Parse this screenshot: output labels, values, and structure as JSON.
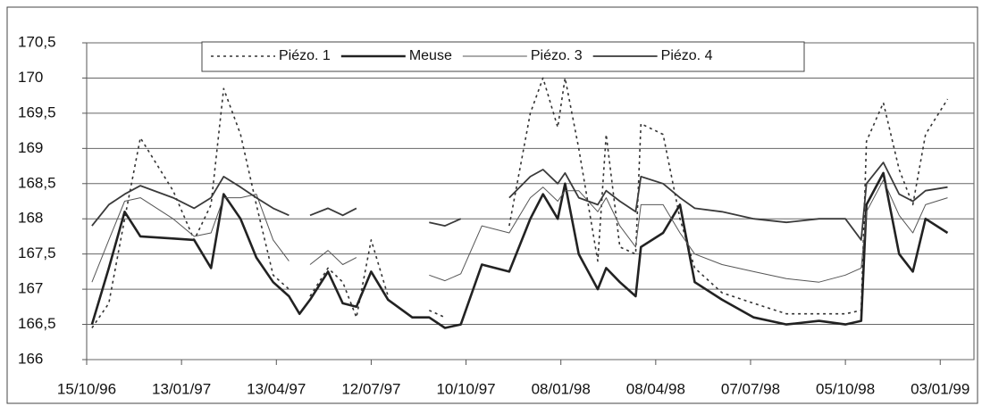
{
  "chart_data": {
    "type": "line",
    "x": [
      "1996-10-20",
      "1996-11-05",
      "1996-11-20",
      "1996-12-05",
      "1997-01-05",
      "1997-01-25",
      "1997-02-10",
      "1997-02-22",
      "1997-03-10",
      "1997-03-25",
      "1997-04-10",
      "1997-04-25",
      "1997-05-05",
      "1997-05-15",
      "1997-06-01",
      "1997-06-15",
      "1997-06-28",
      "1997-07-12",
      "1997-07-28",
      "1997-08-20",
      "1997-09-05",
      "1997-09-20",
      "1997-10-05",
      "1997-10-25",
      "1997-11-20",
      "1997-12-10",
      "1997-12-22",
      "1998-01-05",
      "1998-01-12",
      "1998-01-25",
      "1998-02-12",
      "1998-02-20",
      "1998-03-05",
      "1998-03-20",
      "1998-03-25",
      "1998-04-15",
      "1998-05-01",
      "1998-05-15",
      "1998-06-10",
      "1998-07-10",
      "1998-08-10",
      "1998-09-10",
      "1998-10-05",
      "1998-10-20",
      "1998-10-25",
      "1998-11-10",
      "1998-11-25",
      "1998-12-08",
      "1998-12-20",
      "1999-01-10"
    ],
    "series": [
      {
        "name": "Piézo. 1",
        "color": "#333333",
        "line_style": "dotted",
        "width": 1.6,
        "values": [
          166.45,
          166.8,
          168.0,
          169.15,
          168.4,
          167.7,
          168.2,
          169.85,
          169.2,
          168.2,
          167.2,
          167.0,
          null,
          166.9,
          167.3,
          167.1,
          166.6,
          167.7,
          166.9,
          null,
          166.7,
          166.6,
          null,
          null,
          167.9,
          169.5,
          170.0,
          169.3,
          170.0,
          169.0,
          167.4,
          169.2,
          167.6,
          167.5,
          169.35,
          169.2,
          168.0,
          167.3,
          166.95,
          166.8,
          166.65,
          166.65,
          166.65,
          166.7,
          169.1,
          169.65,
          168.7,
          168.2,
          169.2,
          169.7
        ]
      },
      {
        "name": "Meuse",
        "color": "#222222",
        "line_style": "solid",
        "width": 2.6,
        "values": [
          166.5,
          167.3,
          168.1,
          167.75,
          167.72,
          167.7,
          167.3,
          168.35,
          168.0,
          167.45,
          167.1,
          166.9,
          166.65,
          166.85,
          167.25,
          166.8,
          166.75,
          167.25,
          166.85,
          166.6,
          166.6,
          166.45,
          166.5,
          167.35,
          167.25,
          168.0,
          168.35,
          168.0,
          168.5,
          167.5,
          167.0,
          167.3,
          167.1,
          166.9,
          167.6,
          167.8,
          168.2,
          167.1,
          166.85,
          166.6,
          166.5,
          166.55,
          166.5,
          166.55,
          168.2,
          168.65,
          167.5,
          167.25,
          168.0,
          167.8
        ]
      },
      {
        "name": "Piézo. 3",
        "color": "#555555",
        "line_style": "solid",
        "width": 1.0,
        "values": [
          167.1,
          167.7,
          168.25,
          168.3,
          168.0,
          167.75,
          167.8,
          168.3,
          168.3,
          168.35,
          167.7,
          167.4,
          null,
          167.35,
          167.55,
          167.35,
          167.45,
          null,
          null,
          null,
          167.2,
          167.12,
          167.22,
          167.9,
          167.8,
          168.3,
          168.45,
          168.25,
          168.4,
          168.4,
          168.1,
          168.3,
          167.9,
          167.6,
          168.2,
          168.2,
          167.8,
          167.5,
          167.35,
          167.25,
          167.15,
          167.1,
          167.2,
          167.3,
          168.1,
          168.55,
          168.05,
          167.8,
          168.2,
          168.3
        ]
      },
      {
        "name": "Piézo. 4",
        "color": "#3a3a3a",
        "line_style": "solid",
        "width": 1.8,
        "values": [
          167.9,
          168.2,
          168.35,
          168.47,
          168.3,
          168.15,
          168.3,
          168.6,
          168.45,
          168.3,
          168.15,
          168.05,
          null,
          168.05,
          168.15,
          168.05,
          168.15,
          null,
          null,
          null,
          167.95,
          167.9,
          168.0,
          null,
          168.3,
          168.6,
          168.7,
          168.5,
          168.65,
          168.3,
          168.2,
          168.4,
          168.25,
          168.1,
          168.6,
          168.5,
          168.3,
          168.15,
          168.1,
          168.0,
          167.95,
          168.0,
          168.0,
          167.7,
          168.5,
          168.8,
          168.35,
          168.25,
          168.4,
          168.45
        ]
      }
    ],
    "xlim": [
      "1996-10-15",
      "1999-02-04"
    ],
    "xticks": [
      {
        "value": "1996-10-15",
        "label": "15/10/96"
      },
      {
        "value": "1997-01-13",
        "label": "13/01/97"
      },
      {
        "value": "1997-04-13",
        "label": "13/04/97"
      },
      {
        "value": "1997-07-12",
        "label": "12/07/97"
      },
      {
        "value": "1997-10-10",
        "label": "10/10/97"
      },
      {
        "value": "1998-01-08",
        "label": "08/01/98"
      },
      {
        "value": "1998-04-08",
        "label": "08/04/98"
      },
      {
        "value": "1998-07-07",
        "label": "07/07/98"
      },
      {
        "value": "1998-10-05",
        "label": "05/10/98"
      },
      {
        "value": "1999-01-03",
        "label": "03/01/99"
      }
    ],
    "ylim": [
      166,
      170.5
    ],
    "yticks": [
      166,
      {
        "value": 166.5,
        "label": "166,5"
      },
      167,
      {
        "value": 167.5,
        "label": "167,5"
      },
      168,
      {
        "value": 168.5,
        "label": "168,5"
      },
      169,
      {
        "value": 169.5,
        "label": "169,5"
      },
      170,
      {
        "value": 170.5,
        "label": "170,5"
      }
    ],
    "grid": true,
    "legend": "top"
  }
}
